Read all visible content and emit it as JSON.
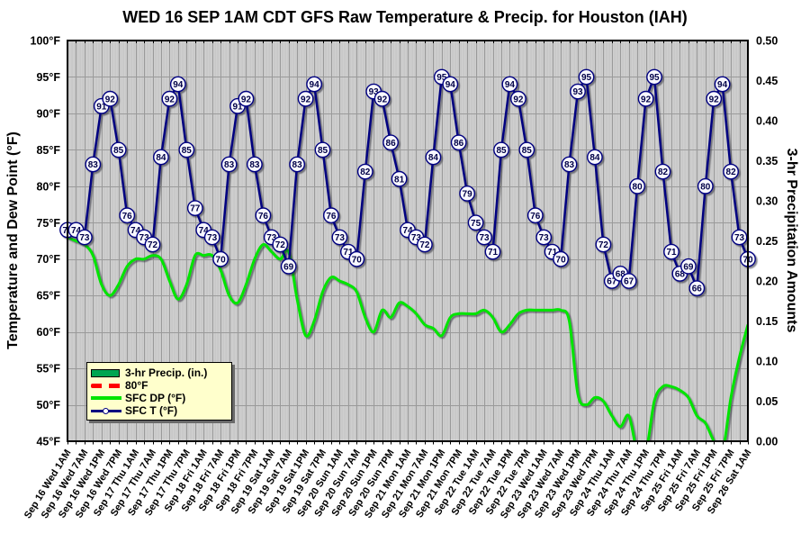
{
  "title": "WED 16 SEP 1AM CDT GFS Raw Temperature & Precip. for Houston (IAH)",
  "left_axis": {
    "title": "Temperature and Dew Point (°F)",
    "ticks": [
      "100°F",
      "95°F",
      "90°F",
      "85°F",
      "80°F",
      "75°F",
      "70°F",
      "65°F",
      "60°F",
      "55°F",
      "50°F",
      "45°F"
    ]
  },
  "right_axis": {
    "title": "3-hr Precipitation Amounts",
    "ticks": [
      "0.50",
      "0.45",
      "0.40",
      "0.35",
      "0.30",
      "0.25",
      "0.20",
      "0.15",
      "0.10",
      "0.05",
      "0.00"
    ]
  },
  "legend": {
    "items": [
      {
        "label": "3-hr Precip. (in.)",
        "swatch": "bar",
        "color": "#00A551"
      },
      {
        "label": "80°F",
        "swatch": "dashed-line",
        "color": "#FF0000"
      },
      {
        "label": "SFC DP (°F)",
        "swatch": "line",
        "color": "#00E400"
      },
      {
        "label": "SFC T (°F)",
        "swatch": "line-marker",
        "color": "#000080"
      }
    ],
    "position": "lower-left"
  },
  "colors": {
    "temp_line": "#000080",
    "dewpoint_line": "#00E400",
    "reference_line": "#FF0000",
    "precip_bar": "#00A551",
    "plot_background": "#C8C8C8",
    "gridline": "#9A9A9A",
    "legend_background": "#FFFFCC",
    "marker_fill": "#F8F8FF",
    "marker_text": "#000046"
  },
  "chart_data": {
    "type": "line",
    "title": "WED 16 SEP 1AM CDT GFS Raw Temperature & Precip. for Houston (IAH)",
    "x_step_hours": 3,
    "x_start": "Sep 16 Wed 1AM",
    "x_end": "Sep 26 Sat 1AM",
    "x_tick_labels": [
      "Sep 16 Wed 1AM",
      "Sep 16 Wed 7AM",
      "Sep 16 Wed 1PM",
      "Sep 16 Wed 7PM",
      "Sep 17 Thu 1AM",
      "Sep 17 Thu 7AM",
      "Sep 17 Thu 1PM",
      "Sep 17 Thu 7PM",
      "Sep 18 Fri 1AM",
      "Sep 18 Fri 7AM",
      "Sep 18 Fri 1PM",
      "Sep 18 Fri 7PM",
      "Sep 19 Sat 1AM",
      "Sep 19 Sat 7AM",
      "Sep 19 Sat 1PM",
      "Sep 19 Sat 7PM",
      "Sep 20 Sun 1AM",
      "Sep 20 Sun 7AM",
      "Sep 20 Sun 1PM",
      "Sep 20 Sun 7PM",
      "Sep 21 Mon 1AM",
      "Sep 21 Mon 7AM",
      "Sep 21 Mon 1PM",
      "Sep 21 Mon 7PM",
      "Sep 22 Tue 1AM",
      "Sep 22 Tue 7AM",
      "Sep 22 Tue 1PM",
      "Sep 22 Tue 7PM",
      "Sep 23 Wed 1AM",
      "Sep 23 Wed 7AM",
      "Sep 23 Wed 1PM",
      "Sep 23 Wed 7PM",
      "Sep 24 Thu 1AM",
      "Sep 24 Thu 7AM",
      "Sep 24 Thu 1PM",
      "Sep 24 Thu 7PM",
      "Sep 25 Fri 1AM",
      "Sep 25 Fri 7AM",
      "Sep 25 Fri 1PM",
      "Sep 25 Fri 7PM",
      "Sep 26 Sat 1AM"
    ],
    "temp_axis_range": [
      45,
      100
    ],
    "temp_axis_tick_step": 5,
    "precip_axis_range": [
      0,
      0.5
    ],
    "precip_axis_tick_step": 0.05,
    "grid": true,
    "reference_line": {
      "label": "80°F",
      "value": 80,
      "style": "dashed",
      "color": "#FF0000"
    },
    "series": [
      {
        "name": "SFC T (°F)",
        "axis": "left",
        "color": "#000080",
        "marker": "labeled-circle",
        "values": [
          74,
          74,
          73,
          83,
          91,
          92,
          85,
          76,
          74,
          73,
          72,
          84,
          92,
          94,
          85,
          77,
          74,
          73,
          70,
          83,
          91,
          92,
          83,
          76,
          73,
          72,
          69,
          83,
          92,
          94,
          85,
          76,
          73,
          71,
          70,
          82,
          93,
          92,
          86,
          81,
          74,
          73,
          72,
          84,
          95,
          94,
          86,
          79,
          75,
          73,
          71,
          85,
          94,
          92,
          85,
          76,
          73,
          71,
          70,
          83,
          93,
          95,
          84,
          72,
          67,
          68,
          67,
          80,
          92,
          95,
          82,
          71,
          68,
          69,
          66,
          80,
          92,
          94,
          82,
          73,
          70
        ]
      },
      {
        "name": "SFC DP (°F)",
        "axis": "left",
        "color": "#00E400",
        "marker": "none",
        "values": [
          73,
          72.5,
          72,
          70.5,
          66.5,
          65,
          66.5,
          69,
          70,
          70,
          70.5,
          70,
          67,
          64.5,
          66.5,
          70.5,
          70.5,
          70.5,
          68.5,
          65,
          64,
          66.5,
          70,
          72,
          71,
          70,
          71,
          64.5,
          59.5,
          61.5,
          65.5,
          67.5,
          67,
          66.5,
          65.5,
          62,
          60,
          63,
          62,
          64,
          63.5,
          62.5,
          61,
          60.5,
          59.5,
          62,
          62.5,
          62.5,
          62.5,
          63,
          62,
          60,
          61,
          62.5,
          63,
          63,
          63,
          63,
          63,
          61.5,
          51.5,
          50,
          51,
          50.5,
          48.5,
          47,
          48.5,
          43.5,
          43.5,
          50.5,
          52.5,
          52.5,
          52,
          51,
          48.5,
          47.5,
          45,
          43.5,
          51,
          56.5,
          61
        ]
      },
      {
        "name": "3-hr Precip. (in.)",
        "axis": "right",
        "color": "#00A551",
        "marker": "none",
        "values": [
          0,
          0,
          0,
          0,
          0,
          0,
          0,
          0,
          0,
          0,
          0,
          0,
          0,
          0,
          0,
          0,
          0,
          0,
          0,
          0,
          0,
          0,
          0,
          0,
          0,
          0,
          0,
          0,
          0,
          0,
          0,
          0,
          0,
          0,
          0,
          0,
          0,
          0,
          0,
          0,
          0,
          0,
          0,
          0,
          0,
          0,
          0,
          0,
          0,
          0,
          0,
          0,
          0,
          0,
          0,
          0,
          0,
          0,
          0,
          0,
          0,
          0,
          0,
          0,
          0,
          0,
          0,
          0,
          0,
          0,
          0,
          0,
          0,
          0,
          0,
          0,
          0,
          0,
          0,
          0,
          0
        ]
      }
    ],
    "legend_position": "lower-left"
  }
}
